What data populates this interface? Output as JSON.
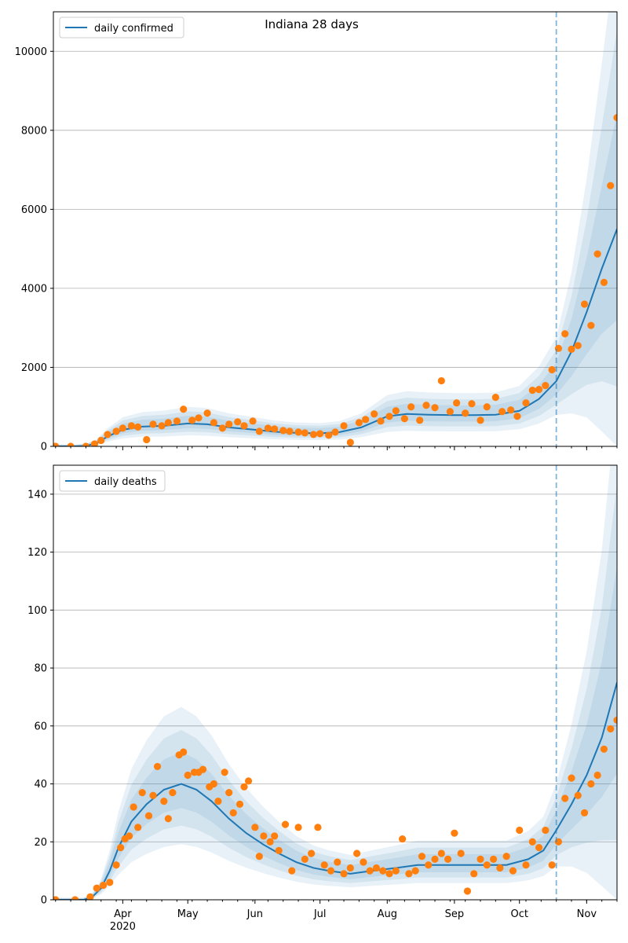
{
  "figure": {
    "title": "Indiana 28 days"
  },
  "chart_data": [
    {
      "type": "line",
      "title": "Indiana 28 days",
      "xlabel": "",
      "ylabel": "",
      "xlim": [
        "2020-02-29",
        "2020-11-15"
      ],
      "ylim": [
        0,
        11000
      ],
      "yticks": [
        0,
        2000,
        4000,
        6000,
        8000,
        10000
      ],
      "grid": "horizontal",
      "legend_placement": "top-left",
      "legend": [
        "daily confirmed"
      ],
      "forecast_start": "2020-10-18",
      "colors": {
        "line": "#1f77b4",
        "points": "#ff7f0e",
        "band": "#1f77b4",
        "forecast": "#1f77b4"
      },
      "series": [
        {
          "name": "daily confirmed",
          "kind": "model",
          "x": [
            "2020-03-01",
            "2020-03-10",
            "2020-03-15",
            "2020-03-20",
            "2020-03-25",
            "2020-04-01",
            "2020-04-10",
            "2020-04-20",
            "2020-05-01",
            "2020-05-10",
            "2020-05-20",
            "2020-06-01",
            "2020-06-10",
            "2020-06-20",
            "2020-07-01",
            "2020-07-10",
            "2020-07-20",
            "2020-08-01",
            "2020-08-10",
            "2020-08-20",
            "2020-09-01",
            "2020-09-10",
            "2020-09-20",
            "2020-10-01",
            "2020-10-10",
            "2020-10-18",
            "2020-10-25",
            "2020-11-01",
            "2020-11-08",
            "2020-11-15"
          ],
          "values": [
            0,
            0,
            10,
            80,
            250,
            420,
            500,
            520,
            580,
            560,
            480,
            420,
            370,
            340,
            330,
            360,
            480,
            760,
            820,
            800,
            790,
            790,
            800,
            900,
            1200,
            1650,
            2400,
            3400,
            4500,
            5500
          ]
        },
        {
          "name": "observed",
          "kind": "points",
          "x": [
            "2020-03-01",
            "2020-03-08",
            "2020-03-15",
            "2020-03-19",
            "2020-03-22",
            "2020-03-25",
            "2020-03-29",
            "2020-04-01",
            "2020-04-05",
            "2020-04-08",
            "2020-04-12",
            "2020-04-15",
            "2020-04-19",
            "2020-04-22",
            "2020-04-26",
            "2020-04-29",
            "2020-05-03",
            "2020-05-06",
            "2020-05-10",
            "2020-05-13",
            "2020-05-17",
            "2020-05-20",
            "2020-05-24",
            "2020-05-27",
            "2020-05-31",
            "2020-06-03",
            "2020-06-07",
            "2020-06-10",
            "2020-06-14",
            "2020-06-17",
            "2020-06-21",
            "2020-06-24",
            "2020-06-28",
            "2020-07-01",
            "2020-07-05",
            "2020-07-08",
            "2020-07-12",
            "2020-07-15",
            "2020-07-19",
            "2020-07-22",
            "2020-07-26",
            "2020-07-29",
            "2020-08-02",
            "2020-08-05",
            "2020-08-09",
            "2020-08-12",
            "2020-08-16",
            "2020-08-19",
            "2020-08-23",
            "2020-08-26",
            "2020-08-30",
            "2020-09-02",
            "2020-09-06",
            "2020-09-09",
            "2020-09-13",
            "2020-09-16",
            "2020-09-20",
            "2020-09-23",
            "2020-09-27",
            "2020-09-30",
            "2020-10-04",
            "2020-10-07",
            "2020-10-10",
            "2020-10-13",
            "2020-10-16",
            "2020-10-19",
            "2020-10-22",
            "2020-10-25",
            "2020-10-28",
            "2020-10-31",
            "2020-11-03",
            "2020-11-06",
            "2020-11-09",
            "2020-11-12",
            "2020-11-15"
          ],
          "values": [
            0,
            0,
            0,
            60,
            150,
            300,
            380,
            460,
            520,
            490,
            170,
            560,
            520,
            600,
            640,
            940,
            660,
            720,
            840,
            600,
            460,
            560,
            620,
            520,
            640,
            380,
            460,
            440,
            400,
            380,
            360,
            340,
            300,
            320,
            280,
            360,
            520,
            100,
            600,
            680,
            820,
            640,
            760,
            900,
            700,
            1000,
            660,
            1040,
            980,
            1660,
            880,
            1100,
            840,
            1080,
            660,
            1000,
            1240,
            880,
            920,
            760,
            1100,
            1420,
            1440,
            1540,
            1940,
            2480,
            2850,
            2460,
            2550,
            3600,
            3060,
            4870,
            4150,
            6600,
            8320
          ]
        }
      ]
    },
    {
      "type": "line",
      "title": "",
      "xlabel": "",
      "ylabel": "",
      "xlim": [
        "2020-02-29",
        "2020-11-15"
      ],
      "ylim": [
        0,
        150
      ],
      "yticks": [
        0,
        20,
        40,
        60,
        80,
        100,
        120,
        140
      ],
      "xticks": [
        "Apr",
        "May",
        "Jun",
        "Jul",
        "Aug",
        "Sep",
        "Oct",
        "Nov"
      ],
      "xtick_sub": "2020",
      "grid": "horizontal",
      "legend_placement": "top-left",
      "legend": [
        "daily deaths"
      ],
      "forecast_start": "2020-10-18",
      "series": [
        {
          "name": "daily deaths",
          "kind": "model",
          "x": [
            "2020-03-01",
            "2020-03-14",
            "2020-03-18",
            "2020-03-22",
            "2020-03-26",
            "2020-03-30",
            "2020-04-05",
            "2020-04-12",
            "2020-04-20",
            "2020-04-28",
            "2020-05-05",
            "2020-05-12",
            "2020-05-20",
            "2020-05-28",
            "2020-06-05",
            "2020-06-12",
            "2020-06-20",
            "2020-06-28",
            "2020-07-05",
            "2020-07-15",
            "2020-07-25",
            "2020-08-05",
            "2020-08-15",
            "2020-08-25",
            "2020-09-05",
            "2020-09-15",
            "2020-09-25",
            "2020-10-05",
            "2020-10-12",
            "2020-10-18",
            "2020-10-25",
            "2020-11-01",
            "2020-11-08",
            "2020-11-15"
          ],
          "values": [
            0,
            0,
            1,
            4,
            10,
            18,
            27,
            33,
            38,
            40,
            38,
            34,
            28,
            23,
            19,
            16,
            13,
            11,
            10,
            9,
            10,
            11,
            12,
            12,
            12,
            12,
            12,
            14,
            17,
            24,
            33,
            43,
            56,
            75
          ]
        },
        {
          "name": "observed",
          "kind": "points",
          "x": [
            "2020-03-01",
            "2020-03-10",
            "2020-03-17",
            "2020-03-20",
            "2020-03-23",
            "2020-03-26",
            "2020-03-29",
            "2020-03-31",
            "2020-04-02",
            "2020-04-04",
            "2020-04-06",
            "2020-04-08",
            "2020-04-10",
            "2020-04-13",
            "2020-04-15",
            "2020-04-17",
            "2020-04-20",
            "2020-04-22",
            "2020-04-24",
            "2020-04-27",
            "2020-04-29",
            "2020-05-01",
            "2020-05-04",
            "2020-05-06",
            "2020-05-08",
            "2020-05-11",
            "2020-05-13",
            "2020-05-15",
            "2020-05-18",
            "2020-05-20",
            "2020-05-22",
            "2020-05-25",
            "2020-05-27",
            "2020-05-29",
            "2020-06-01",
            "2020-06-03",
            "2020-06-05",
            "2020-06-08",
            "2020-06-10",
            "2020-06-12",
            "2020-06-15",
            "2020-06-18",
            "2020-06-21",
            "2020-06-24",
            "2020-06-27",
            "2020-06-30",
            "2020-07-03",
            "2020-07-06",
            "2020-07-09",
            "2020-07-12",
            "2020-07-15",
            "2020-07-18",
            "2020-07-21",
            "2020-07-24",
            "2020-07-27",
            "2020-07-30",
            "2020-08-02",
            "2020-08-05",
            "2020-08-08",
            "2020-08-11",
            "2020-08-14",
            "2020-08-17",
            "2020-08-20",
            "2020-08-23",
            "2020-08-26",
            "2020-08-29",
            "2020-09-01",
            "2020-09-04",
            "2020-09-07",
            "2020-09-10",
            "2020-09-13",
            "2020-09-16",
            "2020-09-19",
            "2020-09-22",
            "2020-09-25",
            "2020-09-28",
            "2020-10-01",
            "2020-10-04",
            "2020-10-07",
            "2020-10-10",
            "2020-10-13",
            "2020-10-16",
            "2020-10-19",
            "2020-10-22",
            "2020-10-25",
            "2020-10-28",
            "2020-10-31",
            "2020-11-03",
            "2020-11-06",
            "2020-11-09",
            "2020-11-12",
            "2020-11-15"
          ],
          "values": [
            0,
            0,
            1,
            4,
            5,
            6,
            12,
            18,
            21,
            22,
            32,
            25,
            37,
            29,
            36,
            46,
            34,
            28,
            37,
            50,
            51,
            43,
            44,
            44,
            45,
            39,
            40,
            34,
            44,
            37,
            30,
            33,
            39,
            41,
            25,
            15,
            22,
            20,
            22,
            17,
            26,
            10,
            25,
            14,
            16,
            25,
            12,
            10,
            13,
            9,
            11,
            16,
            13,
            10,
            11,
            10,
            9,
            10,
            21,
            9,
            10,
            15,
            12,
            14,
            16,
            14,
            23,
            16,
            3,
            9,
            14,
            12,
            14,
            11,
            15,
            10,
            24,
            12,
            20,
            18,
            24,
            12,
            20,
            35,
            42,
            36,
            30,
            40,
            43,
            52,
            59,
            62
          ]
        }
      ]
    }
  ]
}
